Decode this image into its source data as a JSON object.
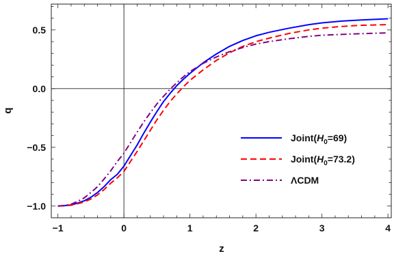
{
  "chart_data": {
    "type": "line",
    "xlabel": "z",
    "ylabel": "q",
    "xlim": [
      -1.1,
      4.05
    ],
    "ylim": [
      -1.1,
      0.72
    ],
    "xticks": [
      -1,
      0,
      1,
      2,
      3,
      4
    ],
    "xtick_labels": [
      "−1",
      "0",
      "1",
      "2",
      "3",
      "4"
    ],
    "yticks": [
      -1.0,
      -0.5,
      0.0,
      0.5
    ],
    "ytick_labels": [
      "−1.0",
      "−0.5",
      "0.0",
      "0.5"
    ],
    "reference_lines": {
      "x": 0,
      "y": 0
    },
    "legend_position": "center-right",
    "series": [
      {
        "name": "Joint(H0=69)",
        "legend": {
          "pre": "Joint(",
          "var": "H",
          "sub": "0",
          "post": "=69)"
        },
        "color": "#0000ff",
        "style": "solid",
        "x": [
          -1,
          -0.9,
          -0.8,
          -0.7,
          -0.6,
          -0.5,
          -0.4,
          -0.3,
          -0.2,
          -0.1,
          0,
          0.1,
          0.2,
          0.3,
          0.4,
          0.5,
          0.6,
          0.7,
          0.8,
          0.9,
          1.0,
          1.2,
          1.4,
          1.6,
          1.8,
          2.0,
          2.2,
          2.5,
          2.8,
          3.0,
          3.3,
          3.6,
          4.0
        ],
        "y": [
          -1.0,
          -0.997,
          -0.99,
          -0.975,
          -0.955,
          -0.925,
          -0.885,
          -0.835,
          -0.775,
          -0.73,
          -0.66,
          -0.57,
          -0.48,
          -0.38,
          -0.285,
          -0.195,
          -0.11,
          -0.04,
          0.025,
          0.08,
          0.13,
          0.22,
          0.295,
          0.36,
          0.41,
          0.45,
          0.48,
          0.515,
          0.545,
          0.56,
          0.575,
          0.585,
          0.595
        ]
      },
      {
        "name": "Joint(H0=73.2)",
        "legend": {
          "pre": "Joint(",
          "var": "H",
          "sub": "0",
          "post": "=73.2)"
        },
        "color": "#ff0000",
        "style": "dashed",
        "x": [
          -1,
          -0.9,
          -0.8,
          -0.7,
          -0.6,
          -0.5,
          -0.4,
          -0.3,
          -0.2,
          -0.1,
          0,
          0.1,
          0.2,
          0.3,
          0.4,
          0.5,
          0.6,
          0.7,
          0.8,
          0.9,
          1.0,
          1.2,
          1.4,
          1.6,
          1.8,
          2.0,
          2.2,
          2.5,
          2.8,
          3.0,
          3.3,
          3.6,
          4.0
        ],
        "y": [
          -1.0,
          -0.998,
          -0.993,
          -0.98,
          -0.965,
          -0.94,
          -0.905,
          -0.86,
          -0.805,
          -0.76,
          -0.705,
          -0.62,
          -0.535,
          -0.445,
          -0.355,
          -0.265,
          -0.185,
          -0.11,
          -0.045,
          0.015,
          0.07,
          0.16,
          0.24,
          0.305,
          0.36,
          0.4,
          0.43,
          0.47,
          0.5,
          0.515,
          0.53,
          0.54,
          0.545
        ]
      },
      {
        "name": "ΛCDM",
        "legend": {
          "pre": "ΛCDM",
          "var": "",
          "sub": "",
          "post": ""
        },
        "color": "#800080",
        "style": "dashdot",
        "x": [
          -1,
          -0.9,
          -0.8,
          -0.7,
          -0.6,
          -0.5,
          -0.4,
          -0.3,
          -0.2,
          -0.1,
          0,
          0.1,
          0.2,
          0.3,
          0.4,
          0.5,
          0.6,
          0.7,
          0.8,
          0.9,
          1.0,
          1.2,
          1.4,
          1.6,
          1.8,
          2.0,
          2.2,
          2.5,
          2.8,
          3.0,
          3.3,
          3.6,
          4.0
        ],
        "y": [
          -1.0,
          -0.995,
          -0.985,
          -0.96,
          -0.93,
          -0.885,
          -0.835,
          -0.77,
          -0.7,
          -0.62,
          -0.55,
          -0.46,
          -0.37,
          -0.285,
          -0.205,
          -0.13,
          -0.065,
          -0.005,
          0.05,
          0.1,
          0.145,
          0.215,
          0.27,
          0.315,
          0.35,
          0.38,
          0.4,
          0.425,
          0.445,
          0.455,
          0.462,
          0.468,
          0.475
        ]
      }
    ]
  }
}
